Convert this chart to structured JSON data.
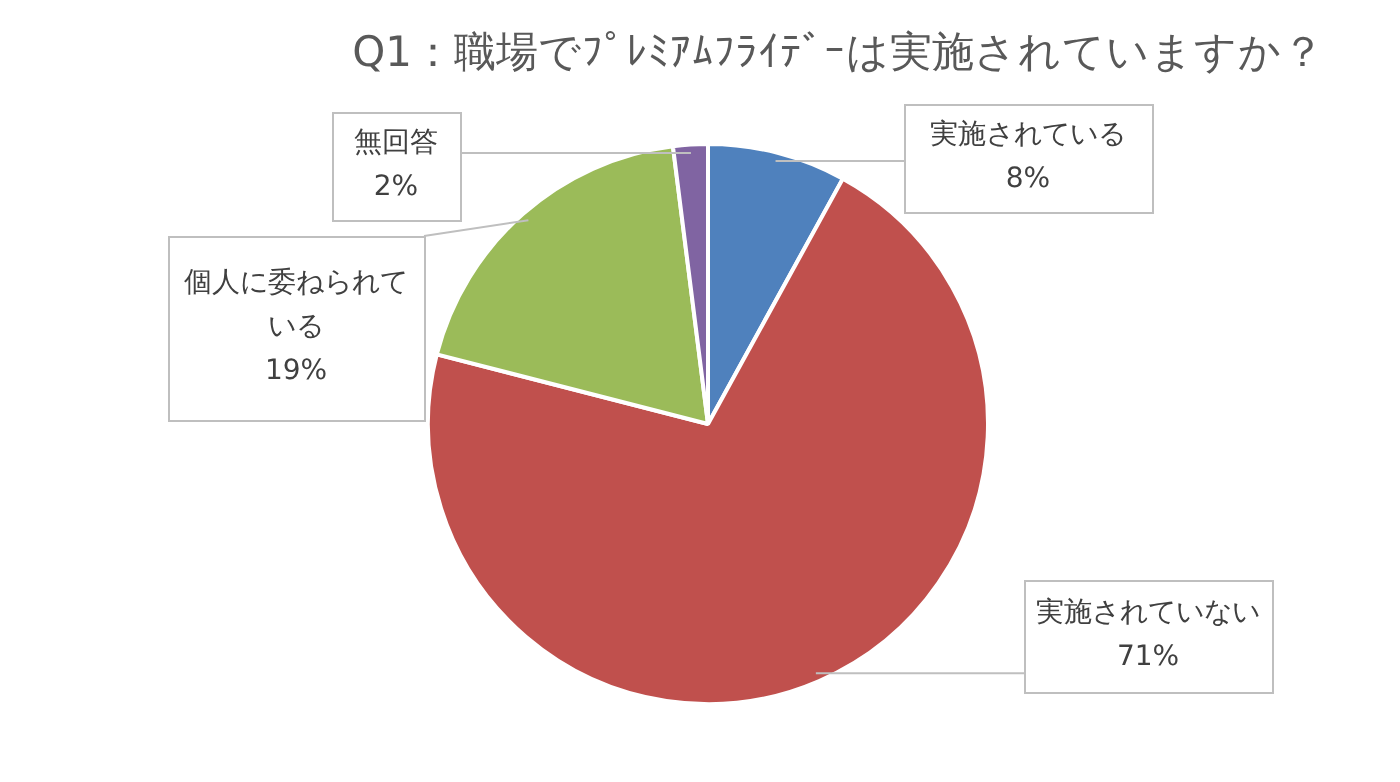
{
  "chart_data": {
    "type": "pie",
    "title": "Q1：職場でﾌﾟﾚﾐｱﾑﾌﾗｲﾃﾞｰは実施されていますか？",
    "categories": [
      "実施されている",
      "実施されていない",
      "個人に委ねられている",
      "無回答"
    ],
    "values": [
      8,
      71,
      19,
      2
    ],
    "colors": [
      "#4f81bd",
      "#c0504d",
      "#9bbb59",
      "#8064a2"
    ],
    "value_labels": [
      "8%",
      "71%",
      "19%",
      "2%"
    ]
  }
}
